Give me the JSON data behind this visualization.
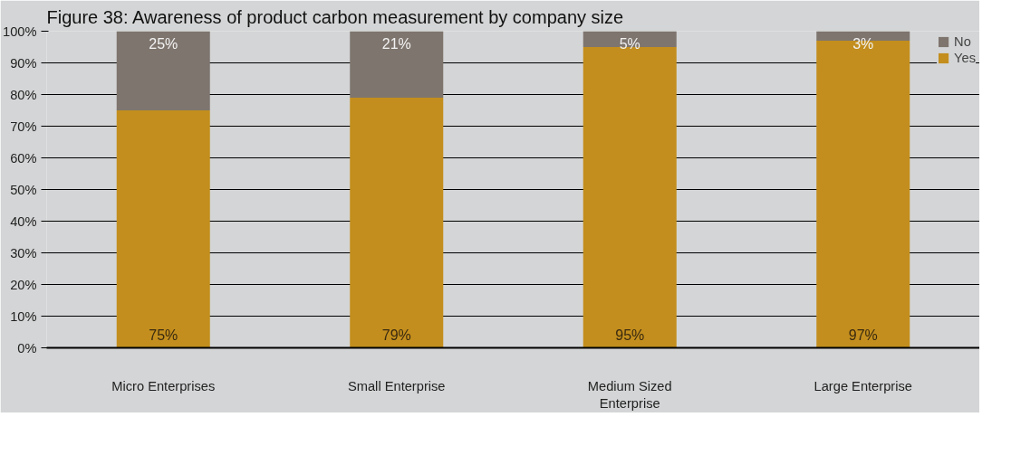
{
  "chart_data": {
    "type": "bar",
    "stacked": true,
    "title": "Figure 38: Awareness of product carbon measurement by company size",
    "categories": [
      "Micro Enterprises",
      "Small Enterprise",
      "Medium Sized Enterprise",
      "Large Enterprise"
    ],
    "series": [
      {
        "name": "Yes",
        "color": "#c38e1d",
        "values": [
          75,
          79,
          95,
          97
        ],
        "value_labels": [
          "75%",
          "79%",
          "95%",
          "97%"
        ]
      },
      {
        "name": "No",
        "color": "#7e756e",
        "values": [
          25,
          21,
          5,
          3
        ],
        "value_labels": [
          "25%",
          "21%",
          "5%",
          "3%"
        ]
      }
    ],
    "ylim": [
      0,
      100
    ],
    "yticks": [
      {
        "value": 0,
        "label": "0%"
      },
      {
        "value": 10,
        "label": "10%"
      },
      {
        "value": 20,
        "label": "20%"
      },
      {
        "value": 30,
        "label": "30%"
      },
      {
        "value": 40,
        "label": "40%"
      },
      {
        "value": 50,
        "label": "50%"
      },
      {
        "value": 60,
        "label": "60%"
      },
      {
        "value": 70,
        "label": "70%"
      },
      {
        "value": 80,
        "label": "80%"
      },
      {
        "value": 90,
        "label": "90%"
      },
      {
        "value": 100,
        "label": "100%"
      }
    ],
    "grid": "y",
    "legend": "top right"
  }
}
